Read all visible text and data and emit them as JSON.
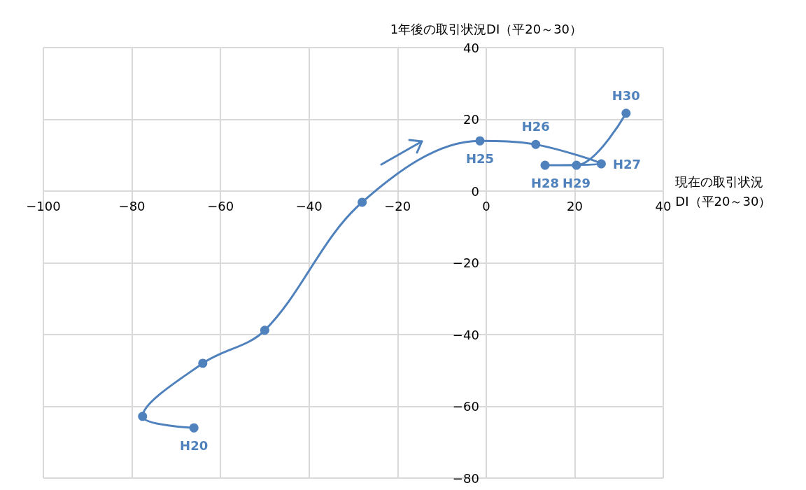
{
  "chart_data": {
    "type": "line",
    "xlabel": "現在の取引状況\nDI（平20～30）",
    "ylabel": "1年後の取引状況DI（平20～30）",
    "x": [
      -66,
      -77.6,
      -64,
      -50,
      -28,
      -1.4,
      11.2,
      26,
      13.3,
      20.4,
      31.6
    ],
    "series": [
      {
        "color": "#4f81bd",
        "values": [
          -66,
          -62.8,
          -48,
          -38.8,
          -3.1,
          14,
          13,
          7.6,
          7.2,
          7.2,
          21.7
        ],
        "value_labels": [
          "H20",
          null,
          null,
          null,
          null,
          "H25",
          "H26",
          "H27",
          "H28",
          "H29",
          "H30"
        ]
      }
    ],
    "xlim": [
      -100,
      40
    ],
    "xticks": [
      -100,
      -80,
      -60,
      -40,
      -20,
      0,
      20,
      40
    ],
    "ylim": [
      -80,
      40
    ],
    "yticks": [
      -80,
      -60,
      -40,
      -20,
      0,
      20,
      40
    ],
    "grid": true,
    "marker": "circle"
  }
}
